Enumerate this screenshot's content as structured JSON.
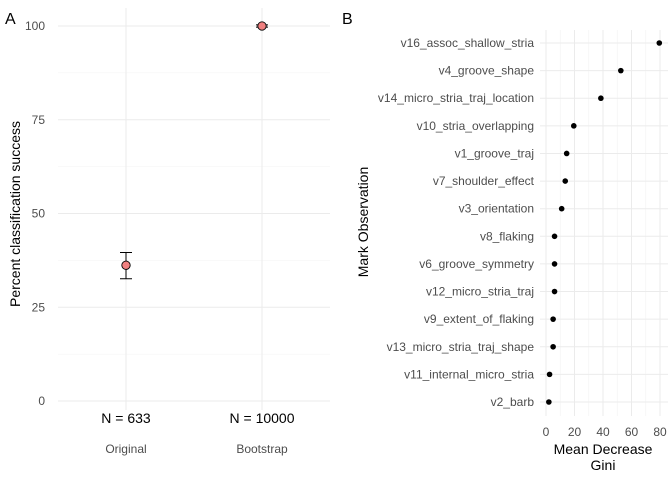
{
  "panels": {
    "a": {
      "letter": "A"
    },
    "b": {
      "letter": "B"
    }
  },
  "chart_data": [
    {
      "type": "scatter",
      "panel": "A",
      "title": "",
      "xlabel": "",
      "ylabel": "Percent classification success",
      "categories": [
        "Original",
        "Bootstrap"
      ],
      "y_ticks": [
        0,
        25,
        50,
        75,
        100
      ],
      "ylim": [
        0,
        100
      ],
      "grid": true,
      "points": [
        {
          "category": "Original",
          "value": 36.2,
          "error_low": 32.6,
          "error_high": 39.6,
          "annotation": "N = 633"
        },
        {
          "category": "Bootstrap",
          "value": 100,
          "error_low": 99.7,
          "error_high": 100.3,
          "annotation": "N = 10000"
        }
      ],
      "point_color": "#f08080"
    },
    {
      "type": "scatter",
      "panel": "B",
      "title": "",
      "xlabel": "Mean Decrease\nGini",
      "ylabel": "Mark Observation",
      "x_ticks": [
        0,
        20,
        40,
        60,
        80
      ],
      "xlim": [
        0,
        80
      ],
      "grid": true,
      "categories": [
        "v16_assoc_shallow_stria",
        "v4_groove_shape",
        "v14_micro_stria_traj_location",
        "v10_stria_overlapping",
        "v1_groove_traj",
        "v7_shoulder_effect",
        "v3_orientation",
        "v8_flaking",
        "v6_groove_symmetry",
        "v12_micro_stria_traj",
        "v9_extent_of_flaking",
        "v13_micro_stria_traj_shape",
        "v11_internal_micro_stria",
        "v2_barb"
      ],
      "values": [
        79.5,
        52.5,
        38.5,
        19.5,
        14.5,
        13.5,
        11.0,
        6.0,
        6.0,
        6.0,
        5.0,
        5.0,
        2.5,
        2.0
      ],
      "point_color": "#000000"
    }
  ]
}
